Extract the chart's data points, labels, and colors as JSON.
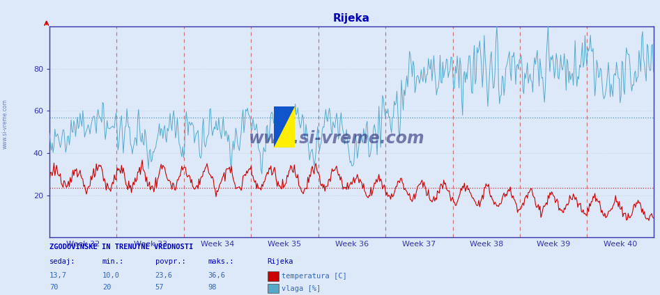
{
  "title": "Rijeka",
  "title_color": "#0000bb",
  "bg_color": "#dde8f8",
  "plot_bg_color": "#dde8f8",
  "grid_h_color": "#bbccdd",
  "grid_v_color": "#bbccdd",
  "week_labels": [
    "Week 32",
    "Week 33",
    "Week 34",
    "Week 35",
    "Week 36",
    "Week 37",
    "Week 38",
    "Week 39",
    "Week 40"
  ],
  "ylim": [
    0,
    100
  ],
  "yticks": [
    20,
    40,
    60,
    80
  ],
  "avg_temp": 23.6,
  "avg_vlaga": 57,
  "temp_color": "#cc0000",
  "vlaga_color": "#55aacc",
  "avg_line_color_temp": "#cc3333",
  "avg_line_color_vlaga": "#4499cc",
  "axis_color": "#3333aa",
  "tick_color": "#3333aa",
  "vline_color": "#cc5555",
  "watermark_color": "#1a1a6e",
  "watermark": "www.si-vreme.com",
  "side_text": "www.si-vreme.com",
  "footer_title": "ZGODOVINSKE IN TRENUTNE VREDNOSTI",
  "footer_col1": "sedaj:",
  "footer_col2": "min.:",
  "footer_col3": "povpr.:",
  "footer_col4": "maks.:",
  "footer_station": "Rijeka",
  "temp_sedaj": "13,7",
  "temp_min": "10,0",
  "temp_povpr": "23,6",
  "temp_maks": "36,6",
  "temp_label": "temperatura [C]",
  "vlaga_sedaj": "70",
  "vlaga_min": "20",
  "vlaga_povpr": "57",
  "vlaga_maks": "98",
  "vlaga_label": "vlaga [%]",
  "n_points": 672
}
